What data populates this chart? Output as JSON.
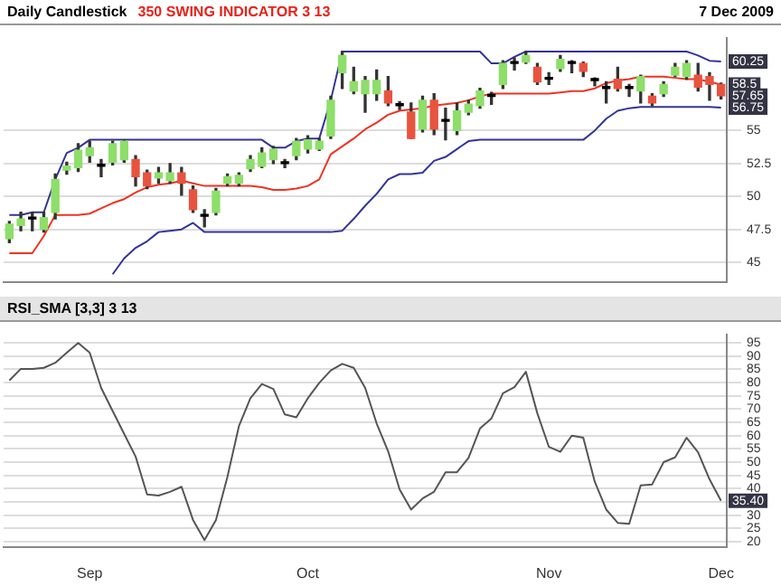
{
  "chart_data": [
    {
      "type": "candlestick",
      "title": "Daily Candlestick",
      "subtitle": "350 SWING INDICATOR 3 13",
      "annotations": [
        "7 Dec 2009",
        {
          "text": "60.25",
          "y": 60.25
        },
        {
          "text": "58.5",
          "y": 58.5
        },
        {
          "text": "57.65",
          "y": 57.65
        },
        {
          "text": "56.75",
          "y": 56.75
        }
      ],
      "categories": [
        null,
        null,
        null,
        null,
        null,
        null,
        null,
        null,
        null,
        null,
        null,
        null,
        null,
        null,
        null,
        null,
        null,
        null,
        null,
        null,
        null,
        null,
        null,
        null,
        null,
        null,
        null,
        null,
        null,
        null,
        null,
        null,
        null,
        null,
        null,
        null,
        null,
        null,
        null,
        null,
        null,
        null,
        null,
        null,
        null,
        null,
        null,
        null,
        null,
        null,
        null,
        null,
        null,
        null,
        null,
        null,
        null,
        null,
        null,
        null,
        null,
        null,
        null
      ],
      "ohlc": [
        [
          46.8,
          48.1,
          46.5,
          47.9
        ],
        [
          47.8,
          48.8,
          47.4,
          48.3
        ],
        [
          48.3,
          48.8,
          47.4,
          48.3
        ],
        [
          47.5,
          48.8,
          47.3,
          48.4
        ],
        [
          48.8,
          51.7,
          48.3,
          51.3
        ],
        [
          52.0,
          52.6,
          51.7,
          52.3
        ],
        [
          52.2,
          54.0,
          51.9,
          53.5
        ],
        [
          53.1,
          54.2,
          52.6,
          53.7
        ],
        [
          52.3,
          52.8,
          51.5,
          52.3
        ],
        [
          52.6,
          54.2,
          52.4,
          54.0
        ],
        [
          52.8,
          54.3,
          52.6,
          54.2
        ],
        [
          52.8,
          53.1,
          50.8,
          51.5
        ],
        [
          51.8,
          52.0,
          50.6,
          50.8
        ],
        [
          51.4,
          52.2,
          51.0,
          51.8
        ],
        [
          51.2,
          52.5,
          51.0,
          51.8
        ],
        [
          51.8,
          52.2,
          50.1,
          51.0
        ],
        [
          50.5,
          50.8,
          48.8,
          49.0
        ],
        [
          48.5,
          49.0,
          47.7,
          48.5
        ],
        [
          48.8,
          50.6,
          48.6,
          50.4
        ],
        [
          51.0,
          51.7,
          50.8,
          51.5
        ],
        [
          51.0,
          51.8,
          50.8,
          51.6
        ],
        [
          52.1,
          53.1,
          51.9,
          52.8
        ],
        [
          52.3,
          53.7,
          52.2,
          53.3
        ],
        [
          52.8,
          53.8,
          52.5,
          53.6
        ],
        [
          52.5,
          52.8,
          52.2,
          52.5
        ],
        [
          53.1,
          54.4,
          52.8,
          54.2
        ],
        [
          53.6,
          54.6,
          53.3,
          54.3
        ],
        [
          53.6,
          54.4,
          53.5,
          54.2
        ],
        [
          54.6,
          57.6,
          54.4,
          57.3
        ],
        [
          59.4,
          61.0,
          58.2,
          60.7
        ],
        [
          58.0,
          59.8,
          57.8,
          58.7
        ],
        [
          57.8,
          59.1,
          56.4,
          58.8
        ],
        [
          57.8,
          59.6,
          57.3,
          58.8
        ],
        [
          58.0,
          59.1,
          56.9,
          57.1
        ],
        [
          56.9,
          57.2,
          56.6,
          56.9
        ],
        [
          56.4,
          57.1,
          54.4,
          54.4
        ],
        [
          55.1,
          57.6,
          54.9,
          57.3
        ],
        [
          57.3,
          57.8,
          54.7,
          55.1
        ],
        [
          55.7,
          56.7,
          54.3,
          55.7
        ],
        [
          55.0,
          57.1,
          54.7,
          56.5
        ],
        [
          56.4,
          57.3,
          56.2,
          57.0
        ],
        [
          56.9,
          58.2,
          56.7,
          58.0
        ],
        [
          57.6,
          57.9,
          57.0,
          57.6
        ],
        [
          58.5,
          60.3,
          58.2,
          60.1
        ],
        [
          60.1,
          60.5,
          59.6,
          60.1
        ],
        [
          60.2,
          61.0,
          60.1,
          60.7
        ],
        [
          59.8,
          60.1,
          58.5,
          58.7
        ],
        [
          58.9,
          59.4,
          58.5,
          58.9
        ],
        [
          59.7,
          60.7,
          59.5,
          60.4
        ],
        [
          60.1,
          60.3,
          59.4,
          60.1
        ],
        [
          60.1,
          60.2,
          59.1,
          59.5
        ],
        [
          58.8,
          59.0,
          58.4,
          58.8
        ],
        [
          58.2,
          58.7,
          57.1,
          58.2
        ],
        [
          58.9,
          59.8,
          58.0,
          58.2
        ],
        [
          58.2,
          58.5,
          57.6,
          58.2
        ],
        [
          58.0,
          59.2,
          57.1,
          59.1
        ],
        [
          57.6,
          57.8,
          56.9,
          57.1
        ],
        [
          57.8,
          58.7,
          57.6,
          58.5
        ],
        [
          59.2,
          60.1,
          59.1,
          59.8
        ],
        [
          59.1,
          60.3,
          58.9,
          60.1
        ],
        [
          59.2,
          60.1,
          58.0,
          58.3
        ],
        [
          59.1,
          59.4,
          57.3,
          58.5
        ],
        [
          58.5,
          58.6,
          57.4,
          57.65
        ]
      ],
      "colors": [
        "#8ede6a",
        "#8ede6a",
        "#000000",
        "#8ede6a",
        "#8ede6a",
        "#8ede6a",
        "#8ede6a",
        "#8ede6a",
        "#000000",
        "#8ede6a",
        "#8ede6a",
        "#e8533f",
        "#e8533f",
        "#8ede6a",
        "#8ede6a",
        "#e8533f",
        "#e8533f",
        "#000000",
        "#8ede6a",
        "#8ede6a",
        "#8ede6a",
        "#8ede6a",
        "#8ede6a",
        "#8ede6a",
        "#000000",
        "#8ede6a",
        "#8ede6a",
        "#8ede6a",
        "#8ede6a",
        "#8ede6a",
        "#8ede6a",
        "#8ede6a",
        "#8ede6a",
        "#e8533f",
        "#000000",
        "#e8533f",
        "#8ede6a",
        "#e8533f",
        "#000000",
        "#8ede6a",
        "#8ede6a",
        "#8ede6a",
        "#000000",
        "#8ede6a",
        "#000000",
        "#8ede6a",
        "#e8533f",
        "#000000",
        "#8ede6a",
        "#000000",
        "#e8533f",
        "#000000",
        "#000000",
        "#e8533f",
        "#000000",
        "#8ede6a",
        "#e8533f",
        "#8ede6a",
        "#8ede6a",
        "#8ede6a",
        "#e8533f",
        "#e8533f",
        "#e8533f"
      ],
      "series": [
        {
          "type": "line",
          "color": "#333399",
          "values": [
            48.6,
            48.6,
            48.8,
            48.8,
            51.3,
            53.3,
            53.7,
            54.3,
            54.3,
            54.3,
            54.3,
            54.3,
            54.3,
            54.3,
            54.3,
            54.3,
            54.3,
            54.3,
            54.3,
            54.3,
            54.3,
            54.3,
            54.3,
            53.7,
            53.7,
            54.2,
            54.4,
            54.4,
            57.3,
            61.0,
            61.0,
            61.0,
            61.0,
            61.0,
            61.0,
            61.0,
            61.0,
            61.0,
            61.0,
            61.0,
            61.0,
            61.0,
            60.1,
            60.1,
            60.6,
            61.0,
            61.0,
            61.0,
            61.0,
            61.0,
            61.0,
            61.0,
            61.0,
            61.0,
            61.0,
            61.0,
            61.0,
            61.0,
            61.0,
            61.0,
            60.7,
            60.3,
            60.25
          ]
        },
        {
          "type": "line",
          "color": "#ee3322",
          "values": [
            45.7,
            45.7,
            45.7,
            47.0,
            48.6,
            48.6,
            48.6,
            48.7,
            49.1,
            49.5,
            49.8,
            50.3,
            50.7,
            50.9,
            51.0,
            51.2,
            51.0,
            50.8,
            50.8,
            50.8,
            50.8,
            50.8,
            50.7,
            50.5,
            50.5,
            50.6,
            50.8,
            51.3,
            53.2,
            53.8,
            54.4,
            55.1,
            55.6,
            56.2,
            56.5,
            56.6,
            56.7,
            56.9,
            57.0,
            57.1,
            57.3,
            57.6,
            57.8,
            57.8,
            57.8,
            57.8,
            57.8,
            57.8,
            57.9,
            58.0,
            58.0,
            58.2,
            58.6,
            58.8,
            58.9,
            59.1,
            59.1,
            59.1,
            59.0,
            58.9,
            58.9,
            58.7,
            58.5
          ]
        },
        {
          "type": "line",
          "color": "#333399",
          "values": [
            null,
            null,
            null,
            null,
            null,
            null,
            null,
            null,
            null,
            44.1,
            45.3,
            46.1,
            46.6,
            47.3,
            47.4,
            47.5,
            48.0,
            47.3,
            47.3,
            47.3,
            47.3,
            47.3,
            47.3,
            47.3,
            47.3,
            47.3,
            47.3,
            47.3,
            47.3,
            47.4,
            48.3,
            49.3,
            50.2,
            51.3,
            51.7,
            51.7,
            51.8,
            52.7,
            53.0,
            53.6,
            54.2,
            54.3,
            54.3,
            54.3,
            54.3,
            54.3,
            54.3,
            54.3,
            54.3,
            54.3,
            54.3,
            55.0,
            55.9,
            56.5,
            56.7,
            56.8,
            56.8,
            56.8,
            56.8,
            56.8,
            56.8,
            56.8,
            56.75
          ]
        }
      ],
      "ylim": [
        43.5,
        62
      ],
      "yticks": [
        45,
        47.5,
        50,
        52.5,
        55
      ],
      "tick_labels": "y",
      "grid": "y",
      "legend": false
    },
    {
      "type": "line",
      "title": "RSI_SMA [3,3] 3 13",
      "annotations": [
        {
          "text": "35.40",
          "y": 35.4
        }
      ],
      "categories": [
        null,
        null,
        null,
        null,
        null,
        null,
        null,
        "Sep",
        null,
        null,
        null,
        null,
        null,
        null,
        null,
        null,
        null,
        null,
        null,
        null,
        null,
        null,
        null,
        null,
        null,
        null,
        "Oct",
        null,
        null,
        null,
        null,
        null,
        null,
        null,
        null,
        null,
        null,
        null,
        null,
        null,
        null,
        null,
        null,
        null,
        null,
        null,
        null,
        "Nov",
        null,
        null,
        null,
        null,
        null,
        null,
        null,
        null,
        null,
        null,
        null,
        null,
        null,
        null,
        "Dec"
      ],
      "series": [
        {
          "color": "#555555",
          "values": [
            80.8,
            85.2,
            85.2,
            85.6,
            87.5,
            91.3,
            95,
            91.3,
            78,
            69.3,
            60.7,
            52.1,
            37.8,
            37.4,
            38.8,
            40.7,
            28.2,
            20.6,
            28.2,
            44.5,
            63.6,
            74.1,
            79.5,
            77.6,
            68,
            66.9,
            74.1,
            79.9,
            84.6,
            87.1,
            85.6,
            78,
            64.6,
            54.1,
            39.7,
            32.1,
            36.3,
            38.8,
            46.2,
            46.2,
            51.6,
            62.7,
            66.5,
            76,
            78.3,
            84.1,
            68.4,
            55.8,
            53.9,
            60,
            59.2,
            42.6,
            32.1,
            27.1,
            26.7,
            41.2,
            41.6,
            50,
            51.8,
            59.2,
            53.7,
            43.5,
            35.4
          ]
        }
      ],
      "ylim": [
        18,
        98
      ],
      "yticks": [
        20,
        25,
        30,
        {
          "value": 35,
          "label": null
        },
        40,
        45,
        50,
        55,
        60,
        65,
        70,
        75,
        80,
        85,
        90,
        95
      ],
      "grid": "y",
      "legend": false
    }
  ]
}
